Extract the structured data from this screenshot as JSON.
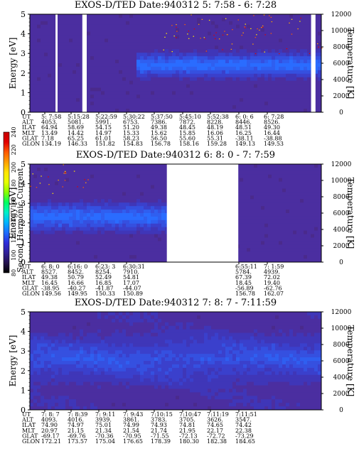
{
  "chart_data": {
    "type": "heatmap",
    "colorbar": {
      "label": "Second Harmonic Current",
      "ticks": [
        "240",
        "220",
        "200",
        "180",
        "160",
        "140",
        "120",
        "100",
        "80"
      ],
      "colors": [
        "#c80000",
        "#e20000",
        "#ff5a00",
        "#ffa000",
        "#ffe600",
        "#e6ff00",
        "#88ff00",
        "#00ff60",
        "#00f0c8",
        "#00b4ff",
        "#1e6eff",
        "#2d2ddc",
        "#30209a",
        "#24124e",
        "#000000"
      ]
    },
    "panels": [
      {
        "title": "EXOS-D/TED   Date:940312  5: 7:58 - 6: 7:28",
        "ylabel": "Energy [eV]",
        "yticks": [
          "5",
          "4",
          "3",
          "2",
          "1",
          "0"
        ],
        "ylim": [
          0,
          5
        ],
        "y2label": "Temperature [K]",
        "y2ticks": [
          "12000",
          "10000",
          "8000",
          "6000",
          "4000",
          "2000",
          "0"
        ],
        "y2lim": [
          0,
          12000
        ],
        "gaps": [
          [
            0.088,
            0.095
          ],
          [
            0.18,
            0.195
          ],
          [
            0.965,
            0.98
          ]
        ],
        "band": {
          "start": 0.36,
          "center": 2.4,
          "halfwidth": 0.8,
          "strength": 1.0
        },
        "speckle": {
          "from": 0.45,
          "density": 0.06,
          "ymin": 3.0
        },
        "footer_labels": [
          "UT",
          "ALT",
          "ILAT",
          "MLT",
          "GLAT",
          "GLON"
        ],
        "footer_cols": [
          [
            "5: 7:58",
            "4053.",
            "64.94",
            "13.49",
            "7.18",
            "134.19"
          ],
          [
            "5:15:28",
            "5081.",
            "58.69",
            "14.42",
            "65.25",
            "146.33"
          ],
          [
            "5:22:59",
            "5991.",
            "54.15",
            "14.97",
            "61.01",
            "151.82"
          ],
          [
            "5:30:22",
            "6753.",
            "51.20",
            "15.33",
            "58.23",
            "154.83"
          ],
          [
            "5:37:50",
            "7386.",
            "49.38",
            "15.62",
            "56.50",
            "156.78"
          ],
          [
            "5:45:10",
            "7872.",
            "48.45",
            "15.85",
            "55.60",
            "158.16"
          ],
          [
            "5:52:38",
            "8228.",
            "48.19",
            "16.06",
            "55.31",
            "159.28"
          ],
          [
            "6: 0: 6",
            "8446.",
            "48.51",
            "16.25",
            "-38.11",
            "149.13"
          ],
          [
            "6: 7:28",
            "8526.",
            "49.30",
            "16.44",
            "-38.88",
            "149.53"
          ]
        ]
      },
      {
        "title": "EXOS-D/TED   Date:940312  6: 8: 0 - 7: 7:59",
        "ylabel": "Energy [eV]",
        "yticks": [
          "5",
          "4",
          "3",
          "2",
          "1",
          "0"
        ],
        "ylim": [
          0,
          5
        ],
        "y2label": "Temperature [K]",
        "y2ticks": [
          "12000",
          "10000",
          "8000",
          "6000",
          "4000",
          "2000",
          "0"
        ],
        "y2lim": [
          0,
          12000
        ],
        "gaps": [
          [
            0.47,
            0.715
          ]
        ],
        "band": {
          "start": 0.0,
          "end": 0.47,
          "center": 2.3,
          "halfwidth": 0.9,
          "strength": 1.0
        },
        "speckle": {
          "from": 0.0,
          "to": 0.2,
          "density": 0.05,
          "ymin": 3.5
        },
        "footer_labels": [
          "UT",
          "ALT",
          "ILAT",
          "MLT",
          "GLAT",
          "GLON"
        ],
        "footer_cols": [
          [
            "6: 8: 0",
            "8527.",
            "49.38",
            "16.45",
            "-38.95",
            "149.56"
          ],
          [
            "6:16: 0",
            "8452.",
            "50.79",
            "16.66",
            "-40.27",
            "149.95"
          ],
          [
            "6:23: 3",
            "8254.",
            "52.49",
            "16.85",
            "-41.87",
            "150.33"
          ],
          [
            "6:30:31",
            "7910.",
            "54.81",
            "17.07",
            "-44.07",
            "150.89"
          ],
          [
            "6:55:11",
            "5784.",
            "67.39",
            "18.45",
            "-56.89",
            "156.78"
          ],
          [
            "7: 1:59",
            "4939.",
            "72.02",
            "19.40",
            "-62.76",
            "162.07"
          ]
        ]
      },
      {
        "title": "EXOS-D/TED   Date:940312  7: 8: 7 - 7:11:59",
        "ylabel": "Energy [eV]",
        "yticks": [
          "5",
          "4",
          "3",
          "2",
          "1",
          "0"
        ],
        "ylim": [
          0,
          5
        ],
        "y2label": "Temperature [K]",
        "y2ticks": [
          "12000",
          "10000",
          "8000",
          "6000",
          "4000",
          "2000",
          "0"
        ],
        "y2lim": [
          0,
          12000
        ],
        "gaps": [],
        "band": {
          "start": 0.0,
          "center": 2.6,
          "halfwidth": 1.6,
          "strength": 0.55
        },
        "speckle": {
          "from": 1.0,
          "density": 0,
          "ymin": 5
        },
        "footer_labels": [
          "UT",
          "ALT",
          "ILAT",
          "MLT",
          "GLAT",
          "GLON"
        ],
        "footer_cols": [
          [
            "7: 8: 7",
            "4093.",
            "74.90",
            "20.97",
            "-69.17",
            "172.21"
          ],
          [
            "7: 8:39",
            "4016.",
            "74.97",
            "21.15",
            "-69.76",
            "173.57"
          ],
          [
            "7: 9:11",
            "3939.",
            "75.01",
            "21.34",
            "-70.36",
            "175.04"
          ],
          [
            "7: 9:43",
            "3861.",
            "74.99",
            "21.54",
            "-70.95",
            "176.65"
          ],
          [
            "7:10:15",
            "3783.",
            "74.93",
            "21.74",
            "-71.55",
            "178.39"
          ],
          [
            "7:10:47",
            "3705.",
            "74.81",
            "21.95",
            "-72.13",
            "180.30"
          ],
          [
            "7:11:19",
            "3626.",
            "74.65",
            "22.17",
            "-72.72",
            "182.38"
          ],
          [
            "7:11:51",
            "3547.",
            "74.42",
            "22.38",
            "-73.29",
            "184.65"
          ]
        ]
      }
    ]
  }
}
